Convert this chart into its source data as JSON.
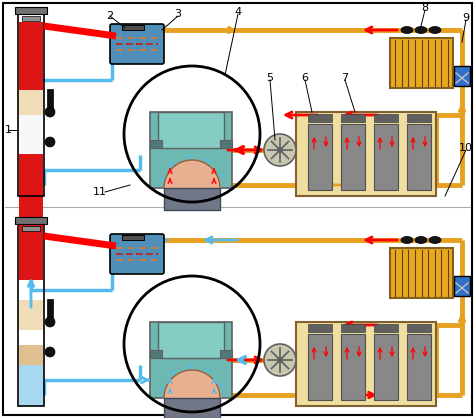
{
  "bg_color": "#ffffff",
  "border_color": "#000000",
  "RED": "#ff0000",
  "BLUE": "#55bbee",
  "ORANGE": "#e8a020",
  "TEAL": "#6db8b0",
  "TEAL2": "#85ccc4",
  "BEIGE": "#f0dea0",
  "GRAY": "#909090",
  "DGRAY": "#606060",
  "BLK": "#000000",
  "tube_red": "#dd1515",
  "tube_beige": "#f0ddb8",
  "tube_white": "#f8f8f8",
  "tube_blue": "#a8d8f0",
  "tank_blue": "#5090b8",
  "piston_peach": "#e8b090",
  "radiator_orange": "#e8a820",
  "valve_blue": "#3070c8",
  "fan_gray": "#c8c8b0"
}
